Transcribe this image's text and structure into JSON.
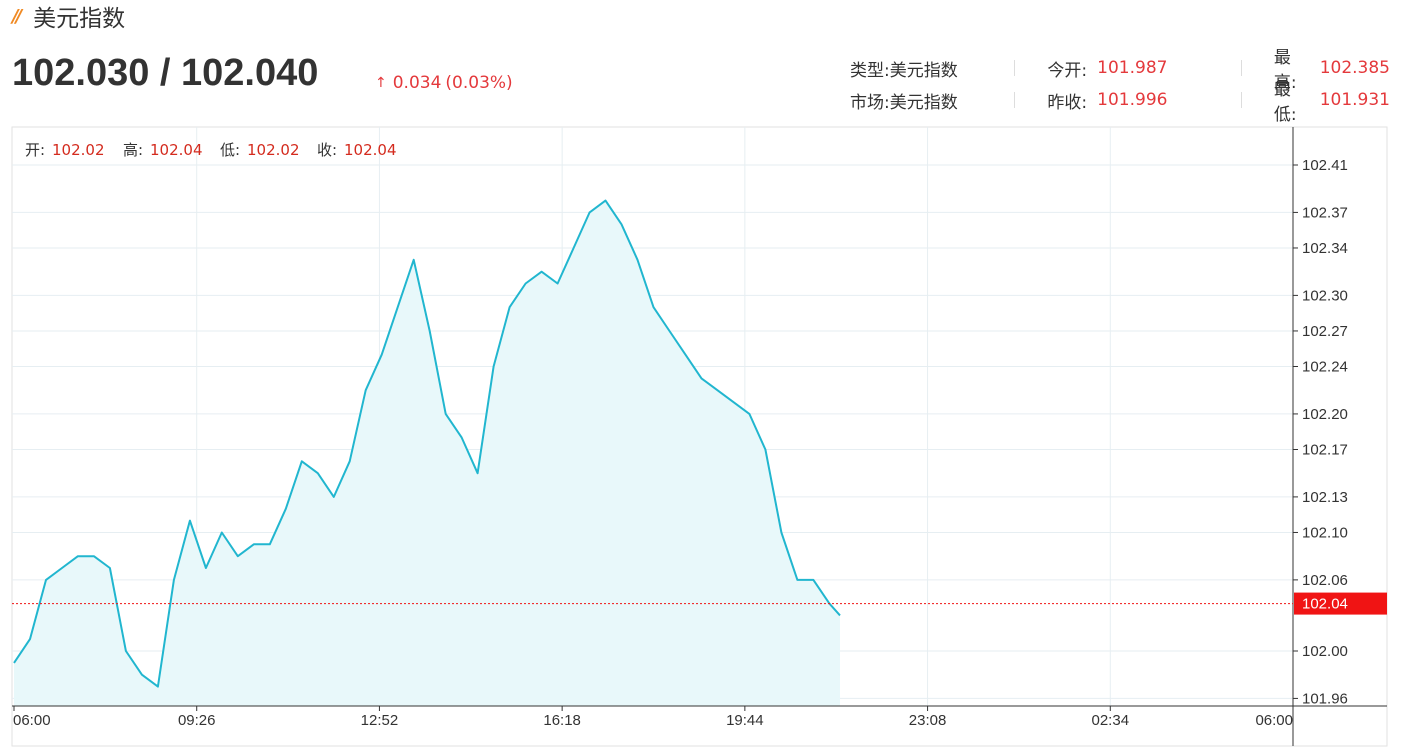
{
  "header": {
    "title": "美元指数"
  },
  "quote": {
    "price": "102.030 / 102.040",
    "change_arrow": "↑",
    "change": "0.034",
    "change_pct": "(0.03%)"
  },
  "info": {
    "type_label": "类型:",
    "type_value": "美元指数",
    "market_label": "市场:",
    "market_value": "美元指数",
    "open_label": "今开:",
    "open_value": "101.987",
    "prev_close_label": "昨收:",
    "prev_close_value": "101.996",
    "high_label": "最高:",
    "high_value": "102.385",
    "low_label": "最低:",
    "low_value": "101.931"
  },
  "ohlc": {
    "open_label": "开:",
    "open_value": "102.02",
    "high_label": "高:",
    "high_value": "102.04",
    "low_label": "低:",
    "low_value": "102.02",
    "close_label": "收:",
    "close_value": "102.04"
  },
  "colors": {
    "line": "#21b6cf",
    "fill": "#e8f8fa",
    "up": "#e4393c",
    "current_tag": "#f01414",
    "grid": "#e6eef2"
  },
  "chart_data": {
    "type": "area",
    "xlabels": [
      "06:00",
      "09:26",
      "12:52",
      "16:18",
      "19:44",
      "23:08",
      "02:34",
      "06:00"
    ],
    "ytick_labels": [
      "102.41",
      "102.37",
      "102.34",
      "102.30",
      "102.27",
      "102.24",
      "102.20",
      "102.17",
      "102.13",
      "102.10",
      "102.06",
      "102.00",
      "101.96"
    ],
    "ytick_values": [
      102.41,
      102.37,
      102.34,
      102.3,
      102.27,
      102.24,
      102.2,
      102.17,
      102.13,
      102.1,
      102.06,
      102.0,
      101.96
    ],
    "current_value": 102.04,
    "current_label": "102.04",
    "x_hours": [
      0,
      0.3,
      0.6,
      0.9,
      1.2,
      1.5,
      1.8,
      2.1,
      2.4,
      2.7,
      3.0,
      3.3,
      3.6,
      3.9,
      4.2,
      4.5,
      4.8,
      5.1,
      5.4,
      5.7,
      6.0,
      6.3,
      6.6,
      6.9,
      7.2,
      7.5,
      7.8,
      8.1,
      8.4,
      8.7,
      9.0,
      9.3,
      9.6,
      9.9,
      10.2,
      10.5,
      10.8,
      11.1,
      11.4,
      11.7,
      12.0,
      12.3,
      12.6,
      12.9,
      13.2,
      13.5,
      13.8,
      14.1,
      14.4,
      14.7,
      15.0,
      15.3,
      15.5
    ],
    "values": [
      101.99,
      102.01,
      102.06,
      102.07,
      102.08,
      102.08,
      102.07,
      102.0,
      101.98,
      101.97,
      102.06,
      102.11,
      102.07,
      102.1,
      102.08,
      102.09,
      102.09,
      102.12,
      102.16,
      102.15,
      102.13,
      102.16,
      102.22,
      102.25,
      102.29,
      102.33,
      102.27,
      102.2,
      102.18,
      102.15,
      102.24,
      102.29,
      102.31,
      102.32,
      102.31,
      102.34,
      102.37,
      102.38,
      102.36,
      102.33,
      102.29,
      102.27,
      102.25,
      102.23,
      102.22,
      102.21,
      102.2,
      102.17,
      102.1,
      102.06,
      102.06,
      102.04,
      102.03
    ]
  }
}
